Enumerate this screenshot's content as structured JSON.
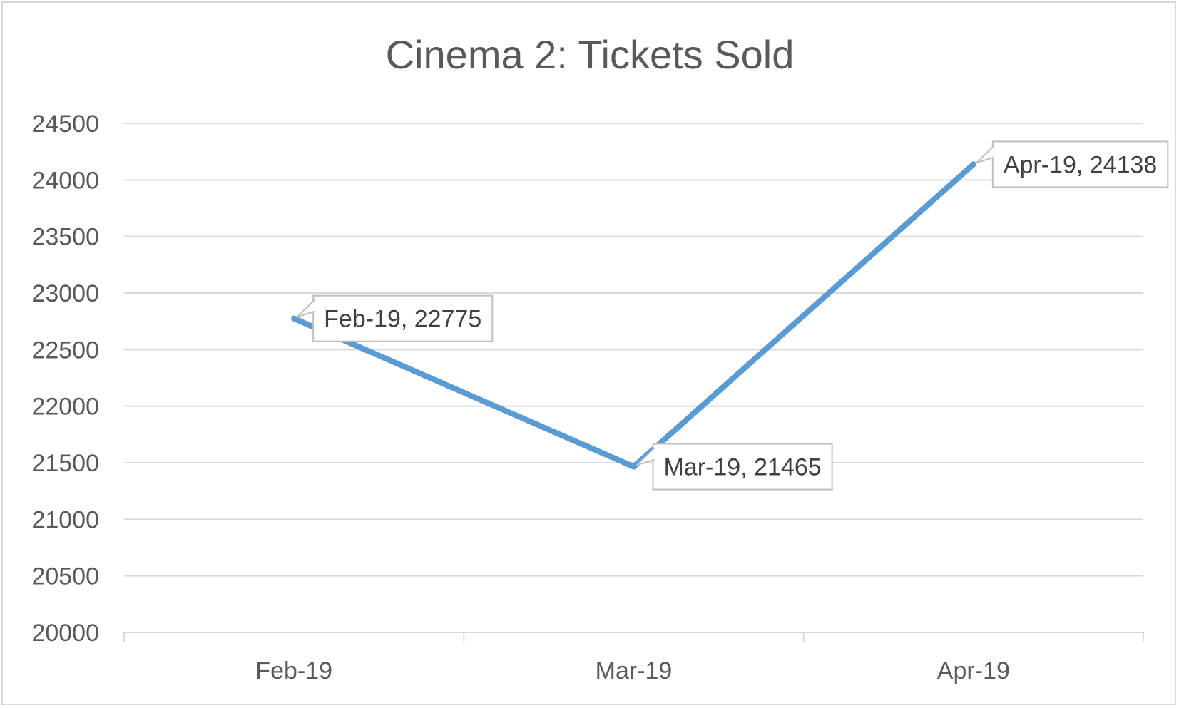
{
  "chart_data": {
    "type": "line",
    "title": "Cinema 2: Tickets Sold",
    "xlabel": "",
    "ylabel": "",
    "categories": [
      "Feb-19",
      "Mar-19",
      "Apr-19"
    ],
    "series": [
      {
        "values": [
          22775,
          21465,
          24138
        ],
        "color": "#5b9bd5"
      }
    ],
    "data_labels": [
      "Feb-19, 22775",
      "Mar-19, 21465",
      "Apr-19, 24138"
    ],
    "ylim": [
      20000,
      24500
    ],
    "yticks": [
      20000,
      20500,
      21000,
      21500,
      22000,
      22500,
      23000,
      23500,
      24000,
      24500
    ],
    "grid": true,
    "legend": "none",
    "colors": {
      "gridline": "#d9d9d9",
      "text": "#595959",
      "label_border": "#bfbfbf"
    }
  }
}
